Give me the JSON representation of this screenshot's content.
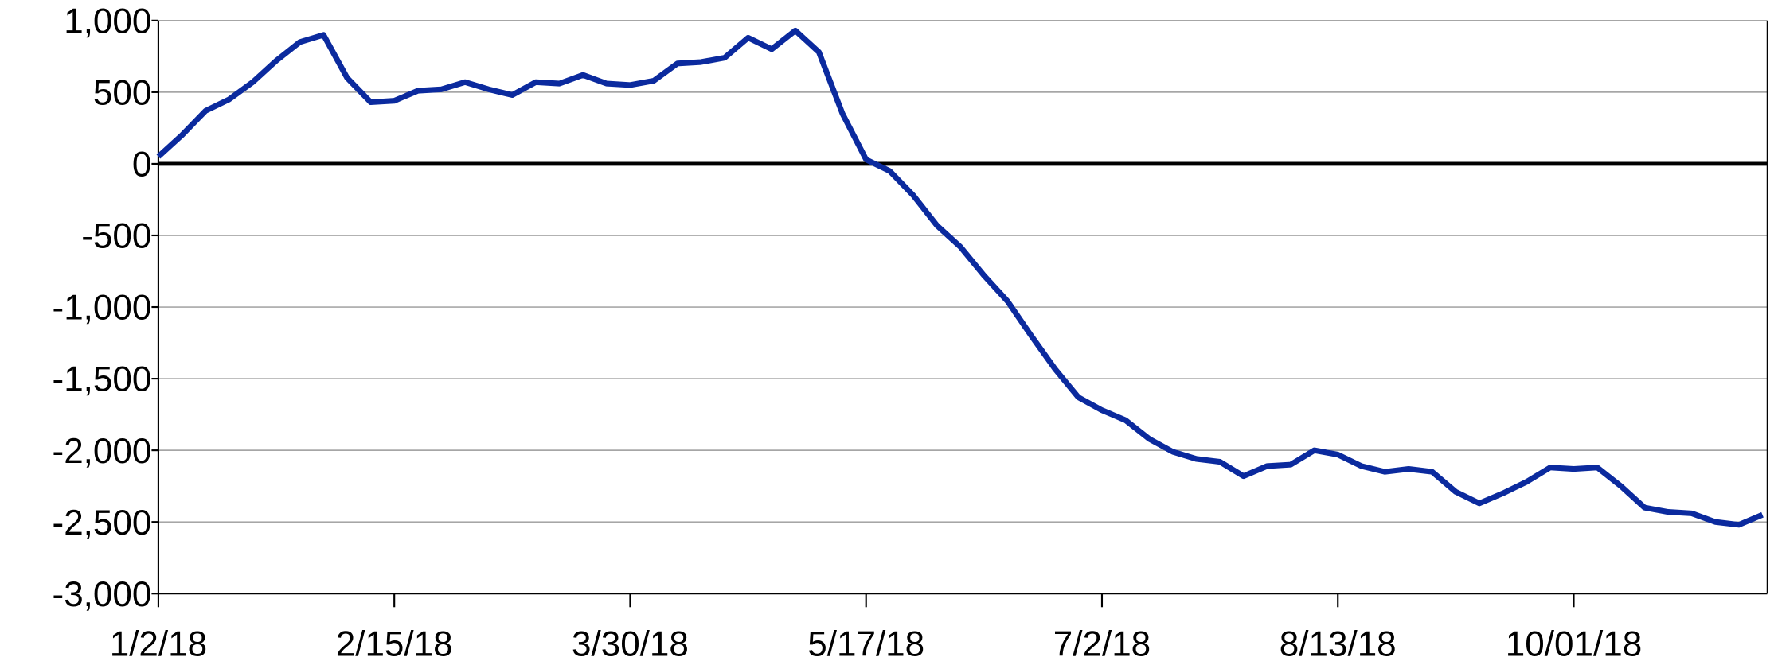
{
  "chart_data": {
    "type": "line",
    "categories": [
      "1/2/18",
      null,
      null,
      null,
      null,
      null,
      null,
      null,
      null,
      null,
      "2/15/18",
      null,
      null,
      null,
      null,
      null,
      null,
      null,
      null,
      null,
      "3/30/18",
      null,
      null,
      null,
      null,
      null,
      null,
      null,
      null,
      null,
      "5/17/18",
      null,
      null,
      null,
      null,
      null,
      null,
      null,
      null,
      null,
      "7/2/18",
      null,
      null,
      null,
      null,
      null,
      null,
      null,
      null,
      null,
      "8/13/18",
      null,
      null,
      null,
      null,
      null,
      null,
      null,
      null,
      null,
      "10/01/18",
      null,
      null,
      null,
      null,
      null,
      null,
      null,
      null
    ],
    "series": [
      {
        "name": null,
        "color": "#0b2a9e",
        "values": [
          50,
          200,
          370,
          450,
          570,
          720,
          850,
          900,
          600,
          430,
          440,
          510,
          520,
          570,
          520,
          480,
          570,
          560,
          620,
          560,
          550,
          580,
          700,
          710,
          740,
          880,
          800,
          930,
          780,
          350,
          30,
          -50,
          -220,
          -430,
          -580,
          -780,
          -960,
          -1200,
          -1430,
          -1630,
          -1720,
          -1790,
          -1920,
          -2010,
          -2060,
          -2080,
          -2180,
          -2110,
          -2100,
          -2000,
          -2030,
          -2110,
          -2150,
          -2130,
          -2150,
          -2290,
          -2370,
          -2300,
          -2220,
          -2120,
          -2130,
          -2120,
          -2250,
          -2400,
          -2430,
          -2440,
          -2500,
          -2520,
          -2450
        ]
      }
    ],
    "ylim": [
      -3000,
      1000
    ],
    "yticks": [
      {
        "value": -3000,
        "label": "-3,000"
      },
      {
        "value": -2500,
        "label": "-2,500"
      },
      {
        "value": -2000,
        "label": "-2,000"
      },
      {
        "value": -1500,
        "label": "-1,500"
      },
      {
        "value": -1000,
        "label": "-1,000"
      },
      {
        "value": -500,
        "label": "-500"
      },
      0,
      500,
      {
        "value": 1000,
        "label": "1,000"
      }
    ],
    "grid": true
  }
}
